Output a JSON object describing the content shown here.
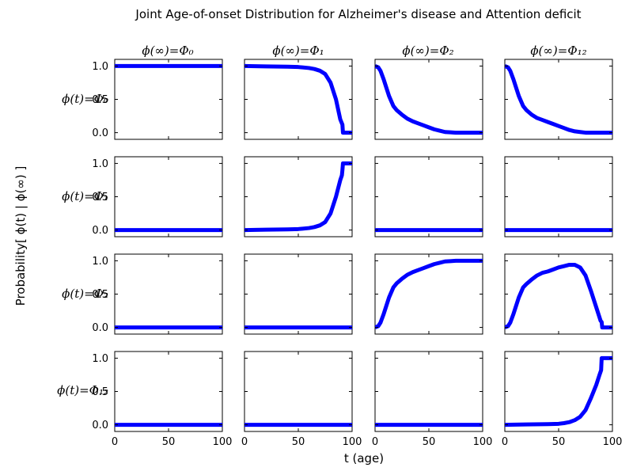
{
  "chart_data": {
    "type": "line",
    "title": "Joint Age-of-onset Distribution for Alzheimer's disease and Attention deficit",
    "xlabel": "t (age)",
    "ylabel": "Probability[ ϕ(t) | ϕ(∞) ]",
    "col_labels": [
      "ϕ(∞)=Φ₀",
      "ϕ(∞)=Φ₁",
      "ϕ(∞)=Φ₂",
      "ϕ(∞)=Φ₁₂"
    ],
    "row_labels": [
      "ϕ(t)=Φ₀",
      "ϕ(t)=Φ₁",
      "ϕ(t)=Φ₂",
      "ϕ(t)=Φ₁₂"
    ],
    "xlim": [
      0,
      100
    ],
    "ylim": [
      -0.1,
      1.1
    ],
    "xticks": [
      "0",
      "50",
      "100"
    ],
    "yticks": [
      "0.0",
      "0.5",
      "1.0"
    ],
    "line_color": "#0000ff",
    "grid": false,
    "panels": [
      [
        {
          "x": [
            0,
            100
          ],
          "y": [
            1,
            1
          ]
        },
        {
          "x": [
            0,
            20,
            40,
            50,
            60,
            65,
            70,
            75,
            80,
            85,
            89,
            91,
            91.5,
            100
          ],
          "y": [
            1,
            0.995,
            0.99,
            0.985,
            0.97,
            0.955,
            0.93,
            0.88,
            0.75,
            0.5,
            0.2,
            0.12,
            0,
            0
          ]
        },
        {
          "x": [
            0,
            3,
            5,
            8,
            10,
            13,
            17,
            20,
            25,
            30,
            35,
            40,
            45,
            50,
            55,
            60,
            65,
            70,
            75,
            80,
            90,
            100
          ],
          "y": [
            1,
            0.98,
            0.93,
            0.8,
            0.7,
            0.55,
            0.4,
            0.34,
            0.27,
            0.21,
            0.17,
            0.14,
            0.11,
            0.08,
            0.05,
            0.03,
            0.01,
            0.005,
            0,
            0,
            0,
            0
          ]
        },
        {
          "x": [
            0,
            3,
            5,
            8,
            10,
            13,
            17,
            20,
            25,
            30,
            35,
            40,
            45,
            50,
            55,
            60,
            65,
            70,
            75,
            80,
            90,
            100
          ],
          "y": [
            1,
            0.98,
            0.93,
            0.8,
            0.7,
            0.55,
            0.4,
            0.34,
            0.27,
            0.22,
            0.19,
            0.16,
            0.13,
            0.1,
            0.07,
            0.04,
            0.02,
            0.01,
            0,
            0,
            0,
            0
          ]
        }
      ],
      [
        {
          "x": [
            0,
            100
          ],
          "y": [
            0,
            0
          ]
        },
        {
          "x": [
            0,
            20,
            40,
            50,
            60,
            65,
            70,
            75,
            80,
            85,
            89,
            90.5,
            91,
            91.5,
            100
          ],
          "y": [
            0,
            0.005,
            0.01,
            0.015,
            0.03,
            0.045,
            0.07,
            0.12,
            0.25,
            0.5,
            0.75,
            0.82,
            0.9,
            1,
            1
          ]
        },
        {
          "x": [
            0,
            100
          ],
          "y": [
            0,
            0
          ]
        },
        {
          "x": [
            0,
            100
          ],
          "y": [
            0,
            0
          ]
        }
      ],
      [
        {
          "x": [
            0,
            100
          ],
          "y": [
            0,
            0
          ]
        },
        {
          "x": [
            0,
            100
          ],
          "y": [
            0,
            0
          ]
        },
        {
          "x": [
            0,
            3,
            5,
            8,
            10,
            13,
            17,
            20,
            25,
            30,
            35,
            40,
            45,
            50,
            55,
            60,
            65,
            70,
            75,
            80,
            90,
            100
          ],
          "y": [
            0,
            0.02,
            0.07,
            0.2,
            0.3,
            0.45,
            0.6,
            0.66,
            0.73,
            0.79,
            0.83,
            0.86,
            0.89,
            0.92,
            0.95,
            0.97,
            0.99,
            0.995,
            1,
            1,
            1,
            1
          ]
        },
        {
          "x": [
            0,
            3,
            5,
            8,
            10,
            13,
            17,
            20,
            25,
            30,
            35,
            40,
            45,
            50,
            55,
            60,
            65,
            70,
            75,
            80,
            85,
            89,
            90,
            90.5,
            100
          ],
          "y": [
            0,
            0.02,
            0.07,
            0.2,
            0.3,
            0.45,
            0.6,
            0.65,
            0.72,
            0.78,
            0.82,
            0.84,
            0.87,
            0.9,
            0.92,
            0.94,
            0.94,
            0.9,
            0.78,
            0.55,
            0.3,
            0.1,
            0.08,
            0,
            0
          ]
        }
      ],
      [
        {
          "x": [
            0,
            100
          ],
          "y": [
            0,
            0
          ]
        },
        {
          "x": [
            0,
            100
          ],
          "y": [
            0,
            0
          ]
        },
        {
          "x": [
            0,
            100
          ],
          "y": [
            0,
            0
          ]
        },
        {
          "x": [
            0,
            20,
            40,
            50,
            55,
            60,
            65,
            70,
            75,
            80,
            85,
            88,
            89.5,
            90,
            100
          ],
          "y": [
            0,
            0.005,
            0.01,
            0.015,
            0.025,
            0.04,
            0.07,
            0.12,
            0.22,
            0.4,
            0.6,
            0.75,
            0.82,
            1,
            1
          ]
        }
      ]
    ]
  }
}
